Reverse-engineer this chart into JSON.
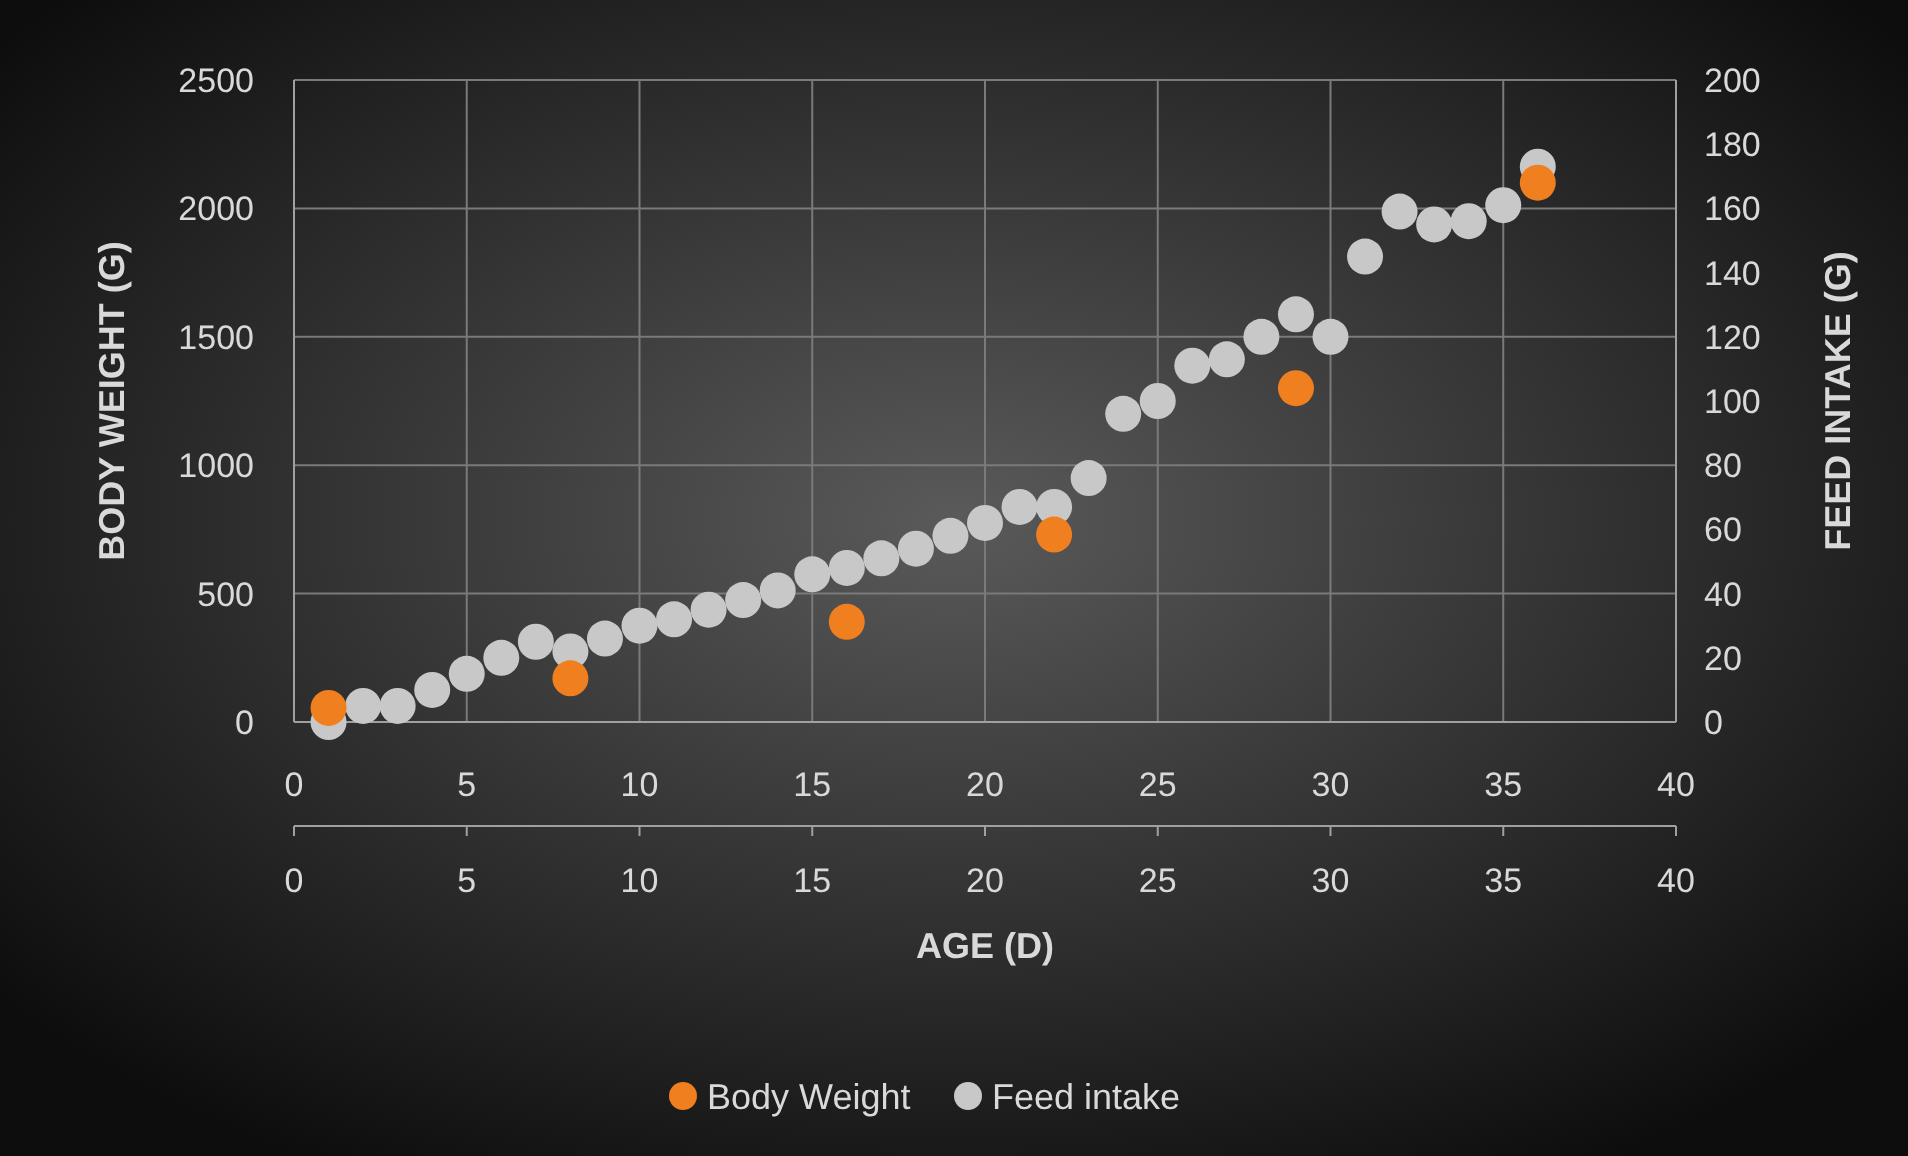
{
  "chart_data": {
    "type": "scatter",
    "xlabel": "AGE (D)",
    "ylabel": "BODY WEIGHT (G)",
    "y2label": "FEED INTAKE (G)",
    "xlim": [
      0,
      40
    ],
    "xticks": [
      0,
      5,
      10,
      15,
      20,
      25,
      30,
      35,
      40
    ],
    "x2lim": [
      0,
      40
    ],
    "x2ticks": [
      0,
      5,
      10,
      15,
      20,
      25,
      30,
      35,
      40
    ],
    "ylim": [
      0,
      2500
    ],
    "yticks": [
      0,
      500,
      1000,
      1500,
      2000,
      2500
    ],
    "y2lim": [
      0,
      200
    ],
    "y2ticks": [
      0,
      20,
      40,
      60,
      80,
      100,
      120,
      140,
      160,
      180,
      200
    ],
    "grid": true,
    "legend": "bottom",
    "marker": "circle",
    "series": [
      {
        "name": "Body Weight",
        "color": "#f07f1f",
        "x": [
          1,
          8,
          16,
          22,
          29,
          36
        ],
        "values": [
          55,
          170,
          390,
          730,
          1300,
          2100
        ]
      },
      {
        "name": "Feed intake",
        "color": "#c8c8c8",
        "axis": "y2",
        "x": [
          1,
          2,
          3,
          4,
          5,
          6,
          7,
          8,
          9,
          10,
          11,
          12,
          13,
          14,
          15,
          16,
          17,
          18,
          19,
          20,
          21,
          22,
          23,
          24,
          25,
          26,
          27,
          28,
          29,
          30,
          31,
          32,
          33,
          34,
          35,
          36
        ],
        "values": [
          0,
          5,
          5,
          10,
          15,
          20,
          25,
          22,
          26,
          30,
          32,
          35,
          38,
          41,
          46,
          48,
          51,
          54,
          58,
          62,
          67,
          67,
          76,
          96,
          100,
          111,
          113,
          120,
          127,
          120,
          145,
          159,
          155,
          156,
          161,
          173
        ]
      }
    ]
  }
}
